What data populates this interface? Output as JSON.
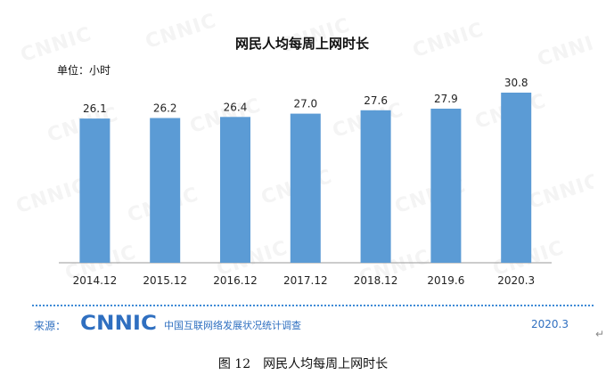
{
  "chart_data": {
    "type": "bar",
    "title": "网民人均每周上网时长",
    "unit": "单位：小时",
    "categories": [
      "2014.12",
      "2015.12",
      "2016.12",
      "2017.12",
      "2018.12",
      "2019.6",
      "2020.3"
    ],
    "values": [
      26.1,
      26.2,
      26.4,
      27.0,
      27.6,
      27.9,
      30.8
    ],
    "value_labels": [
      "26.1",
      "26.2",
      "26.4",
      "27.0",
      "27.6",
      "27.9",
      "30.8"
    ],
    "xlabel": "",
    "ylabel": "",
    "y_axis_shown": false,
    "grid": false,
    "bar_color": "#5b9bd5"
  },
  "footer": {
    "source_label": "来源：",
    "logo_text": "CNNIC",
    "org_name": "中国互联网络发展状况统计调查",
    "date": "2020.3",
    "text_color": "#2f6fc0"
  },
  "watermark_text": "CNNIC",
  "caption": {
    "figure_no": "图 12",
    "title": "网民人均每周上网时长"
  }
}
